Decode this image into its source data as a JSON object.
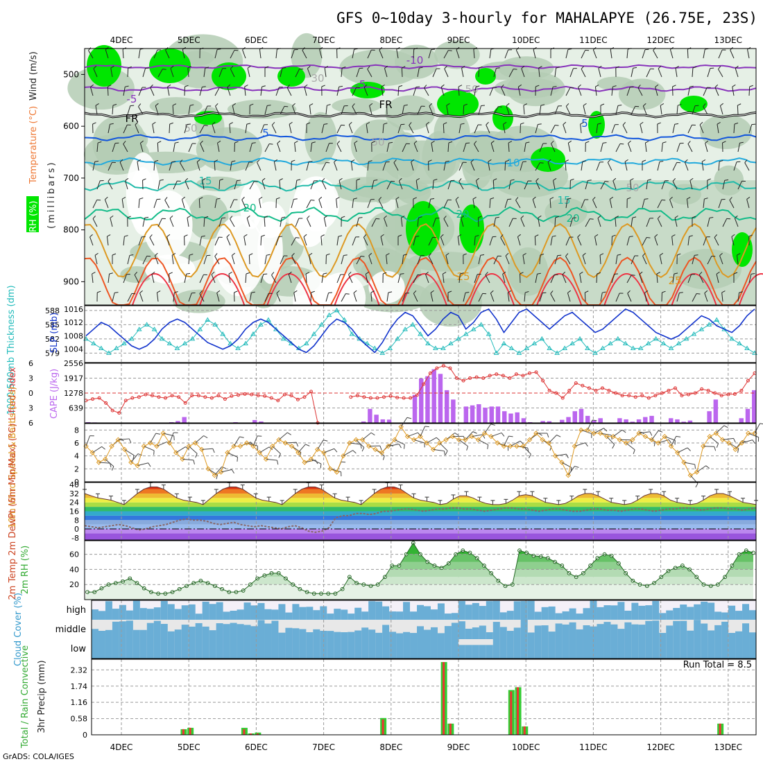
{
  "header": {
    "title": "GFS 0~10day 3-hourly for MAHALAPYE (26.75E, 23S)",
    "credit": "GrADS: COLA/IGES"
  },
  "dates": [
    "4DEC",
    "5DEC",
    "6DEC",
    "7DEC",
    "8DEC",
    "9DEC",
    "10DEC",
    "11DEC",
    "12DEC",
    "13DEC"
  ],
  "colors": {
    "rh_green": "#00e600",
    "rh_mid": "#b4cdb4",
    "rh_light": "#e6f0e6",
    "thickness": "#22bbbb",
    "slp": "#1133cc",
    "lifted": "#dd3333",
    "cape": "#bb66ee",
    "wind": "#dd9922",
    "rh2m": "#33aa33",
    "cloud": "#6aaed6",
    "precip_total": "#33cc33",
    "precip_conv": "#ee3333"
  },
  "chart_data": [
    {
      "id": "upper_air",
      "type": "heatmap",
      "ylabel_parts": [
        "RH (%)",
        "Temperature (°C)",
        "Wind (m/s)"
      ],
      "ylabel_units": "(millibars)",
      "y_ticks": [
        500,
        600,
        700,
        800,
        900
      ],
      "ylim": [
        945,
        450
      ],
      "y_scale": "reversed",
      "contour_labels": [
        "-10",
        "-5",
        "-5",
        "FR",
        "FR",
        "5",
        "5",
        "10",
        "15",
        "15",
        "20",
        "20",
        "20",
        "25",
        "25",
        "30",
        "50",
        "50",
        "50",
        "50"
      ],
      "temperature_levels": [
        -10,
        -5,
        0,
        5,
        10,
        15,
        20,
        25,
        30
      ]
    },
    {
      "id": "thickness_slp",
      "type": "line",
      "ylabel": "1000-500mb Thickness (dm)",
      "ylabel2": "SLP (mb)",
      "y_ticks_left": [
        579,
        582,
        585,
        588
      ],
      "ylim_left": [
        577,
        589
      ],
      "y_ticks_right": [
        1004,
        1008,
        1012,
        1016
      ],
      "ylim_right": [
        1000,
        1017
      ],
      "series": [
        {
          "name": "1000-500mb Thickness (dm)",
          "axis": "left",
          "values": [
            582,
            581,
            580,
            579,
            580,
            581,
            582,
            584,
            585,
            584,
            582,
            581,
            580,
            581,
            582,
            584,
            586,
            585,
            583,
            581,
            580,
            581,
            583,
            585,
            586,
            584,
            582,
            581,
            580,
            581,
            583,
            585,
            587,
            588,
            586,
            583,
            582,
            581,
            580,
            579,
            580,
            582,
            584,
            585,
            583,
            581,
            580,
            580,
            581,
            582,
            583,
            584,
            585,
            583,
            579,
            581,
            580,
            579,
            580,
            581,
            582,
            580,
            579,
            580,
            581,
            582,
            580,
            579,
            580,
            581,
            582,
            581,
            580,
            580,
            581,
            582,
            581,
            580,
            581,
            582,
            583,
            584,
            585,
            586,
            584,
            582,
            581,
            580,
            579
          ]
        },
        {
          "name": "SLP (mb)",
          "axis": "right",
          "values": [
            1008,
            1010,
            1012,
            1011,
            1009,
            1007,
            1005,
            1004,
            1005,
            1007,
            1010,
            1012,
            1013,
            1012,
            1010,
            1008,
            1006,
            1005,
            1004,
            1005,
            1007,
            1010,
            1012,
            1013,
            1012,
            1010,
            1008,
            1006,
            1004,
            1003,
            1005,
            1008,
            1011,
            1013,
            1012,
            1010,
            1007,
            1005,
            1003,
            1006,
            1010,
            1013,
            1015,
            1014,
            1011,
            1008,
            1010,
            1013,
            1015,
            1014,
            1010,
            1012,
            1015,
            1016,
            1013,
            1009,
            1012,
            1015,
            1016,
            1014,
            1012,
            1010,
            1012,
            1014,
            1015,
            1013,
            1011,
            1009,
            1010,
            1012,
            1014,
            1016,
            1015,
            1013,
            1011,
            1009,
            1008,
            1007,
            1008,
            1010,
            1012,
            1014,
            1013,
            1011,
            1010,
            1009,
            1011,
            1014,
            1016
          ]
        }
      ]
    },
    {
      "id": "lifted_cape",
      "type": "bar",
      "ylabel": "Lifted Index",
      "ylabel2": "CAPE (J/kg)",
      "y_ticks_left": [
        -6,
        -3,
        0,
        3,
        6
      ],
      "y_ticks_left_labels": [
        "6",
        "3",
        "0",
        "3",
        "6"
      ],
      "ylim_left": [
        6,
        -6
      ],
      "y_ticks_right": [
        639,
        1278,
        1917,
        2556
      ],
      "y_ticks_right_labels": [
        "639",
        "1278",
        "1917",
        "2556"
      ],
      "ylim_right": [
        0,
        2556
      ],
      "series": [
        {
          "name": "Lifted Index",
          "type": "line",
          "values": [
            1.5,
            1.2,
            1.0,
            2.0,
            3.5,
            4.0,
            1.5,
            1.0,
            0.8,
            0.3,
            0.5,
            0.8,
            1.0,
            0.5,
            0.8,
            2.0,
            0.5,
            0.5,
            0.8,
            1.0,
            0.5,
            1.2,
            0.6,
            0.4,
            0.2,
            0.3,
            0.5,
            0.6,
            1.0,
            1.5,
            0.3,
            0.5,
            1.3,
            0.8,
            -0.3,
            6.0,
            null,
            null,
            null,
            null,
            0.8,
            0.5,
            0.8,
            1.0,
            1.0,
            0.8,
            0.6,
            0.9,
            1.0,
            1.0,
            0.4,
            -1.8,
            -4.0,
            -5.0,
            -5.5,
            -5.0,
            -3.0,
            -2.5,
            -3.0,
            -3.2,
            -3.0,
            -3.5,
            -3.8,
            -3.5,
            -3.0,
            -3.8,
            -3.5,
            -4.0,
            -4.2,
            -2.5,
            -0.5,
            0.0,
            1.0,
            -0.5,
            -2.0,
            -1.5,
            -1.0,
            -0.5,
            -1.0,
            -0.5,
            0.0,
            0.5,
            0.5,
            0.8,
            0.5,
            1.0,
            0.5,
            0.0,
            -0.5,
            -1.0,
            0.5,
            0.3,
            0.0,
            -0.8,
            -0.5,
            0.0,
            0.5,
            0.3,
            0.2,
            -0.5,
            -2.5,
            -4.0
          ]
        },
        {
          "name": "CAPE (J/kg)",
          "type": "bar",
          "values": [
            30,
            20,
            10,
            0,
            0,
            0,
            0,
            0,
            10,
            0,
            0,
            0,
            10,
            30,
            80,
            250,
            0,
            0,
            0,
            0,
            0,
            0,
            0,
            30,
            0,
            0,
            120,
            60,
            0,
            0,
            0,
            0,
            0,
            0,
            0,
            0,
            0,
            0,
            0,
            0,
            0,
            0,
            0,
            60,
            600,
            350,
            150,
            140,
            0,
            0,
            0,
            1200,
            1900,
            2000,
            2300,
            2100,
            1400,
            1000,
            0,
            700,
            750,
            800,
            650,
            700,
            700,
            500,
            400,
            450,
            200,
            30,
            0,
            80,
            70,
            0,
            130,
            250,
            500,
            600,
            300,
            100,
            200,
            0,
            0,
            200,
            150,
            50,
            150,
            250,
            300,
            0,
            0,
            200,
            150,
            50,
            100,
            0,
            0,
            500,
            1000,
            0,
            0,
            0,
            200,
            600,
            1400
          ]
        }
      ]
    },
    {
      "id": "wind10m",
      "type": "line",
      "ylabel": "10m Wind Speed & Barbs (m/s)",
      "y_ticks": [
        0,
        2,
        4,
        6,
        8
      ],
      "ylim": [
        0,
        9
      ],
      "series": [
        {
          "name": "10m Wind Speed",
          "values": [
            5.5,
            4.5,
            3.0,
            3.5,
            5.5,
            6.5,
            5.0,
            3.0,
            2.5,
            5.5,
            6.0,
            5.5,
            7.5,
            6.0,
            4.5,
            3.5,
            5.5,
            6.0,
            5.0,
            2.0,
            1.0,
            1.5,
            4.5,
            5.5,
            5.5,
            6.0,
            5.5,
            4.5,
            3.5,
            5.5,
            6.5,
            6.0,
            5.5,
            4.5,
            3.0,
            3.5,
            5.0,
            4.5,
            2.0,
            1.5,
            4.0,
            6.0,
            6.5,
            6.5,
            5.5,
            5.0,
            4.5,
            5.5,
            6.5,
            8.5,
            7.0,
            6.5,
            7.0,
            6.0,
            5.0,
            6.0,
            6.5,
            7.0,
            6.5,
            6.5,
            7.0,
            6.5,
            7.5,
            7.0,
            6.0,
            5.5,
            5.5,
            5.5,
            5.5,
            6.5,
            7.5,
            6.5,
            6.0,
            4.0,
            3.0,
            1.0,
            5.5,
            8.0,
            8.0,
            7.5,
            7.5,
            7.0,
            7.0,
            6.5,
            6.0,
            6.5,
            7.5,
            7.0,
            6.5,
            6.0,
            7.0,
            5.5,
            4.5,
            3.0,
            1.0,
            1.5,
            5.5,
            7.0,
            7.5,
            6.5,
            6.0,
            5.0,
            6.0,
            7.5,
            7.5
          ]
        }
      ]
    },
    {
      "id": "temp2m",
      "type": "area",
      "ylabel": "2m Temp 2m DewPt (6hr Min/Max) (°C)",
      "y_ticks": [
        0,
        8,
        16,
        24,
        32,
        40
      ],
      "y_ticks_extra": [
        "-8"
      ],
      "ylim": [
        -10,
        42
      ],
      "series": [
        {
          "name": "2m Temp",
          "values": [
            32,
            30,
            28,
            27,
            26,
            24,
            22,
            27,
            32,
            36,
            38,
            38,
            36,
            32,
            28,
            26,
            25,
            24,
            22,
            27,
            32,
            36,
            38,
            38,
            36,
            32,
            28,
            26,
            25,
            24,
            22,
            27,
            32,
            36,
            38,
            38,
            36,
            32,
            28,
            26,
            25,
            24,
            22,
            27,
            32,
            36,
            38,
            38,
            36,
            32,
            28,
            26,
            25,
            24,
            22,
            23,
            27,
            30,
            30,
            28,
            25,
            23,
            22,
            22,
            23,
            26,
            30,
            31,
            30,
            27,
            24,
            23,
            22,
            23,
            26,
            30,
            32,
            32,
            30,
            27,
            24,
            23,
            22,
            23,
            26,
            30,
            32,
            32,
            30,
            26,
            24,
            23,
            22,
            23,
            26,
            30,
            32,
            32,
            30,
            27,
            24,
            23,
            22
          ]
        },
        {
          "name": "2m DewPt",
          "values": [
            3,
            2,
            1,
            2,
            3,
            4,
            3,
            1,
            -1,
            0,
            2,
            3,
            4,
            6,
            8,
            9,
            8,
            8,
            7,
            5,
            4,
            5,
            6,
            4,
            3,
            2,
            3,
            2,
            1,
            0,
            2,
            3,
            1,
            -2,
            -3,
            -2,
            1,
            10,
            12,
            12,
            14,
            14,
            13,
            14,
            16,
            16,
            17,
            18,
            18,
            17,
            16,
            17,
            18,
            18,
            19,
            19,
            18,
            18,
            17,
            16,
            17,
            18,
            19,
            19,
            18,
            18,
            17,
            16,
            17,
            18,
            18,
            17,
            16,
            16,
            17,
            18,
            18,
            17,
            17,
            16,
            17,
            18,
            18,
            17,
            16,
            17,
            18,
            18,
            19,
            19,
            18,
            17,
            18,
            19,
            19,
            18,
            18,
            17,
            18,
            19
          ]
        }
      ]
    },
    {
      "id": "rh2m",
      "type": "area",
      "ylabel": "2m RH (%)",
      "y_ticks": [
        20,
        40,
        60
      ],
      "ylim": [
        0,
        78
      ],
      "series": [
        {
          "name": "2m RH",
          "values": [
            10,
            10,
            15,
            20,
            22,
            24,
            28,
            22,
            15,
            10,
            8,
            8,
            10,
            14,
            18,
            22,
            25,
            22,
            18,
            14,
            10,
            10,
            12,
            20,
            28,
            32,
            35,
            35,
            28,
            20,
            14,
            10,
            8,
            8,
            8,
            8,
            14,
            30,
            22,
            20,
            18,
            20,
            30,
            45,
            45,
            60,
            75,
            60,
            50,
            45,
            42,
            48,
            60,
            65,
            62,
            55,
            45,
            35,
            25,
            18,
            20,
            65,
            62,
            58,
            57,
            55,
            50,
            45,
            35,
            30,
            35,
            45,
            55,
            60,
            58,
            48,
            35,
            25,
            20,
            18,
            22,
            30,
            38,
            42,
            45,
            40,
            30,
            20,
            18,
            20,
            30,
            45,
            60,
            65,
            62
          ]
        }
      ]
    },
    {
      "id": "cloud",
      "type": "heatmap",
      "ylabel": "Cloud Cover (%)",
      "rows": [
        "high",
        "middle",
        "low"
      ]
    },
    {
      "id": "precip",
      "type": "bar",
      "ylabel": "3hr Precip (mm)",
      "ylabel_left": "Total / Rain Convective",
      "annotation": "Run Total = 8.5",
      "y_ticks": [
        0,
        0.58,
        1.16,
        1.74,
        2.32
      ],
      "ylim": [
        0,
        2.7
      ],
      "bars": [
        {
          "date_index": 0.92,
          "total": 0.2,
          "conv": 0.2
        },
        {
          "date_index": 1.02,
          "total": 0.25,
          "conv": 0.25
        },
        {
          "date_index": 1.82,
          "total": 0.25,
          "conv": 0.2
        },
        {
          "date_index": 1.92,
          "total": 0.05,
          "conv": 0.05
        },
        {
          "date_index": 2.02,
          "total": 0.08,
          "conv": 0.05
        },
        {
          "date_index": 3.88,
          "total": 0.6,
          "conv": 0.55
        },
        {
          "date_index": 4.78,
          "total": 2.6,
          "conv": 2.6
        },
        {
          "date_index": 4.88,
          "total": 0.4,
          "conv": 0.4
        },
        {
          "date_index": 5.78,
          "total": 1.6,
          "conv": 1.55
        },
        {
          "date_index": 5.88,
          "total": 1.7,
          "conv": 1.7
        },
        {
          "date_index": 5.98,
          "total": 0.3,
          "conv": 0.3
        },
        {
          "date_index": 8.88,
          "total": 0.4,
          "conv": 0.4
        }
      ]
    }
  ]
}
